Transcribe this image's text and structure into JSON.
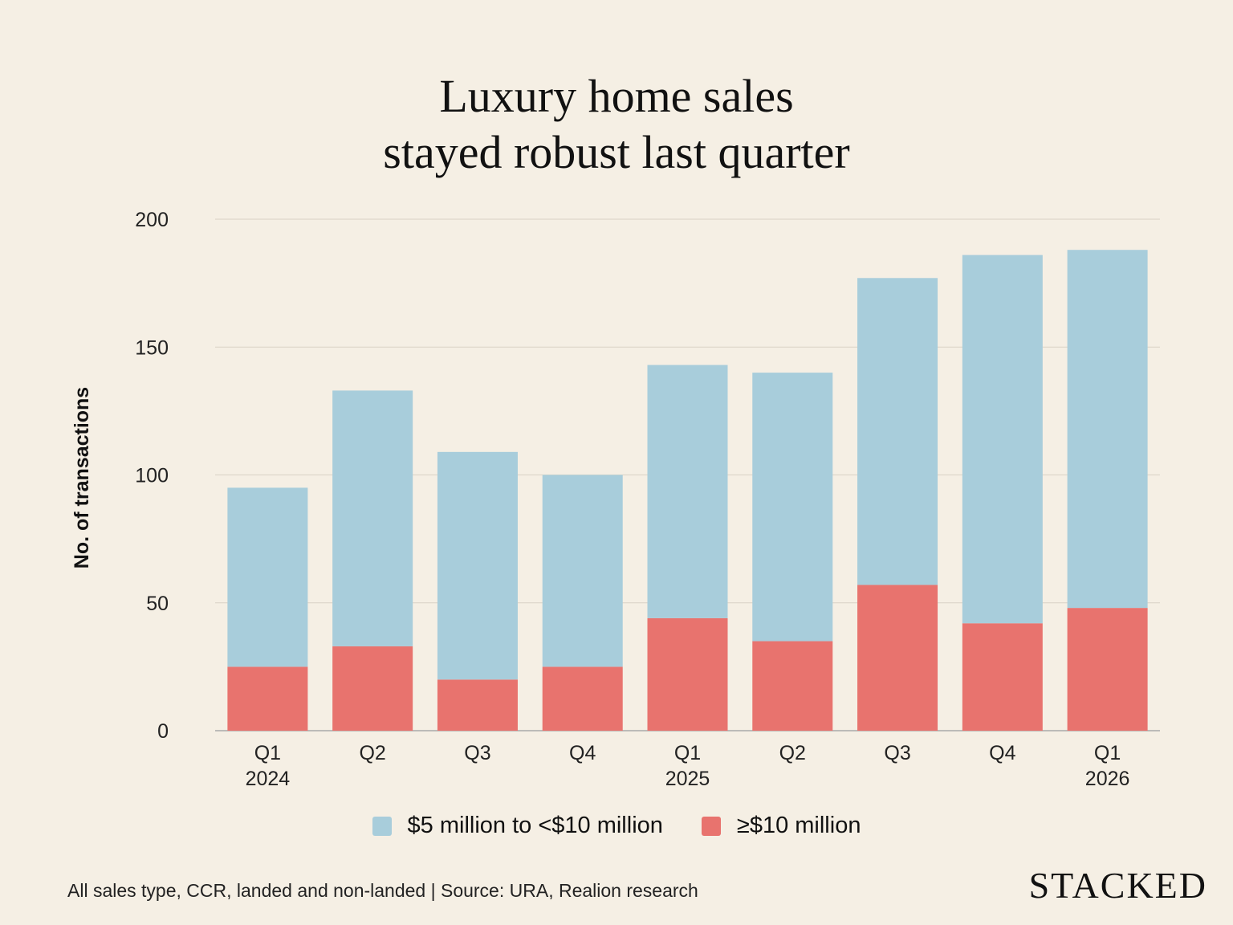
{
  "chart_data": {
    "type": "bar",
    "stacked": true,
    "title": "Luxury home sales\nstayed robust last quarter",
    "title_lines": [
      "Luxury home sales",
      "stayed robust last quarter"
    ],
    "ylabel": "No. of transactions",
    "xlabel": "",
    "ylim": [
      0,
      200
    ],
    "yticks": [
      0,
      50,
      100,
      150,
      200
    ],
    "grid": true,
    "legend_placement": "bottom",
    "categories": [
      {
        "quarter": "Q1",
        "year": "2024"
      },
      {
        "quarter": "Q2",
        "year": ""
      },
      {
        "quarter": "Q3",
        "year": ""
      },
      {
        "quarter": "Q4",
        "year": ""
      },
      {
        "quarter": "Q1",
        "year": "2025"
      },
      {
        "quarter": "Q2",
        "year": ""
      },
      {
        "quarter": "Q3",
        "year": ""
      },
      {
        "quarter": "Q4",
        "year": ""
      },
      {
        "quarter": "Q1",
        "year": "2026"
      }
    ],
    "series": [
      {
        "name": "≥$10 million",
        "color": "#e8736e",
        "values": [
          25,
          33,
          20,
          25,
          44,
          35,
          57,
          42,
          48
        ]
      },
      {
        "name": "$5 million to <$10 million",
        "color": "#a8cddb",
        "values": [
          70,
          100,
          89,
          75,
          99,
          105,
          120,
          144,
          140
        ]
      }
    ]
  },
  "legend": [
    {
      "label": "$5 million to <$10 million",
      "color": "#a8cddb"
    },
    {
      "label": "≥$10 million",
      "color": "#e8736e"
    }
  ],
  "footer": "All sales type, CCR, landed and non-landed | Source: URA, Realion research",
  "logo": "STACKED"
}
